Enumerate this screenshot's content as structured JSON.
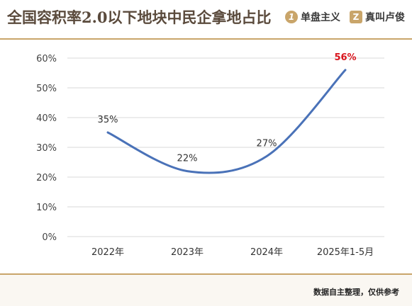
{
  "header": {
    "title": "全国容积率2.0以下地块中民企拿地占比",
    "brand1": {
      "mark": "1",
      "label": "单盘主义",
      "icon": "circle-logo-icon"
    },
    "brand2": {
      "mark": "Z",
      "label": "真叫卢俊",
      "icon": "square-logo-icon"
    }
  },
  "footer": {
    "note": "数据自主整理，仅供参考"
  },
  "colors": {
    "line": "#4a72b8",
    "highlight": "#d9141c",
    "accent": "#c9a56a",
    "grid": "#d9d9d9"
  },
  "chart_data": {
    "type": "line",
    "categories": [
      "2022年",
      "2023年",
      "2024年",
      "2025年1-5月"
    ],
    "values": [
      35,
      22,
      27,
      56
    ],
    "data_labels": [
      "35%",
      "22%",
      "27%",
      "56%"
    ],
    "highlight_index": 3,
    "ylim": [
      0,
      60
    ],
    "yticks": [
      0,
      10,
      20,
      30,
      40,
      50,
      60
    ],
    "ytick_labels": [
      "0%",
      "10%",
      "20%",
      "30%",
      "40%",
      "50%",
      "60%"
    ],
    "grid": true,
    "smooth": true
  }
}
